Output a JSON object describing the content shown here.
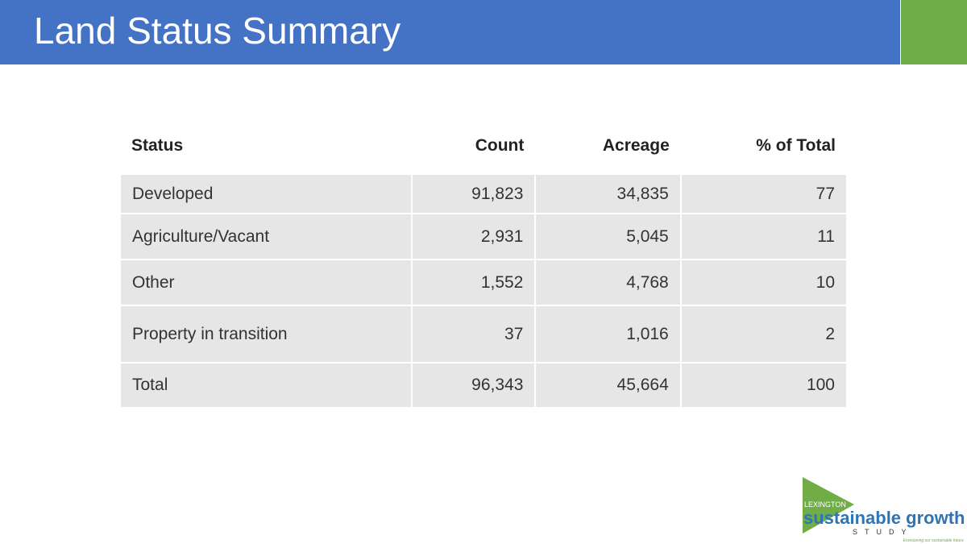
{
  "header": {
    "title": "Land Status Summary"
  },
  "table": {
    "columns": [
      "Status",
      "Count",
      "Acreage",
      "% of Total"
    ],
    "rows": [
      [
        "Developed",
        "91,823",
        "34,835",
        "77"
      ],
      [
        "Agriculture/Vacant",
        "2,931",
        "5,045",
        "11"
      ],
      [
        "Other",
        "1,552",
        "4,768",
        "10"
      ],
      [
        "Property in transition",
        "37",
        "1,016",
        "2"
      ],
      [
        "Total",
        "96,343",
        "45,664",
        "100"
      ]
    ]
  },
  "logo": {
    "city": "LEXINGTON",
    "name": "sustainable growth",
    "study": "STUDY",
    "tagline": "Envisioning our sustainable future."
  }
}
